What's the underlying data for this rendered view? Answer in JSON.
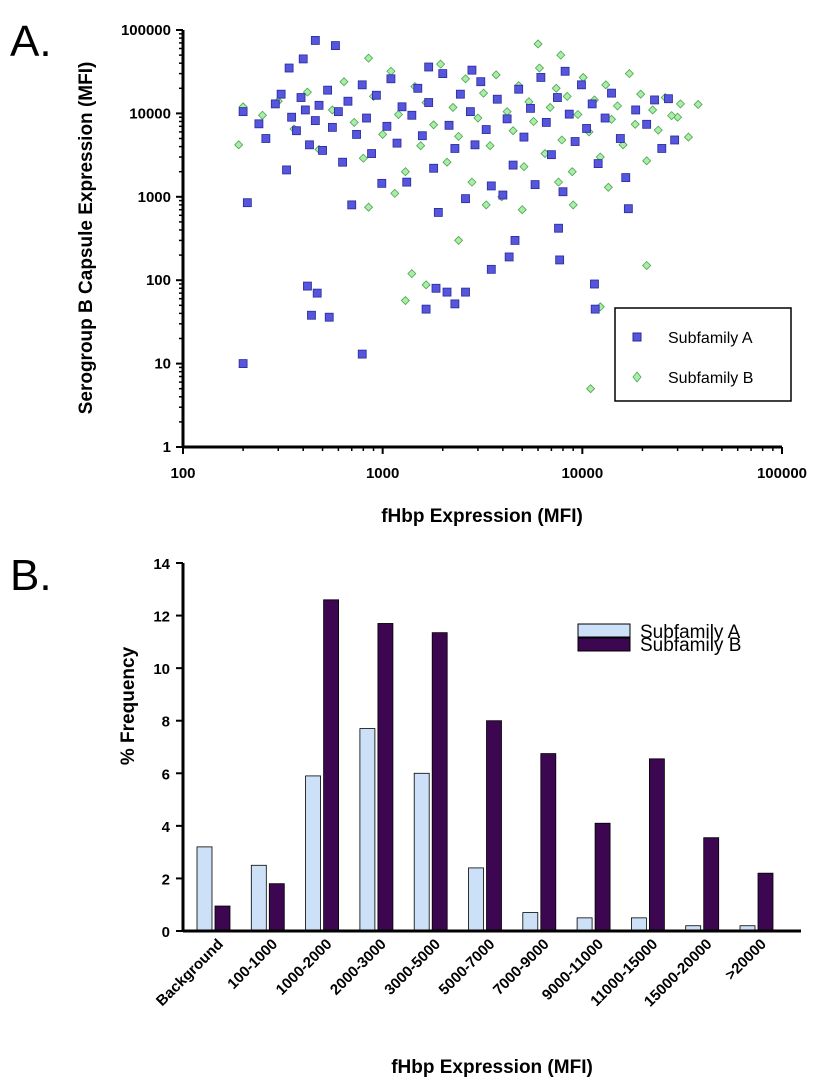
{
  "chart_data": [
    {
      "panel": "A.",
      "type": "scatter",
      "xlabel": "fHbp Expression (MFI)",
      "ylabel": "Serogroup B Capsule Expression (MFI)",
      "xscale": "log",
      "yscale": "log",
      "xlim": [
        100,
        100000
      ],
      "ylim": [
        1,
        100000
      ],
      "xticks": [
        "100",
        "1000",
        "10000",
        "100000"
      ],
      "yticks": [
        "1",
        "10",
        "100",
        "1000",
        "10000",
        "100000"
      ],
      "legend_position": "lower-right",
      "grid": false,
      "series": [
        {
          "name": "Subfamily A",
          "marker": "square",
          "color": "#5555dd",
          "points": [
            [
              200,
              10
            ],
            [
              210,
              850
            ],
            [
              420,
              85
            ],
            [
              440,
              38
            ],
            [
              470,
              70
            ],
            [
              540,
              36
            ],
            [
              790,
              13
            ],
            [
              1850,
              80
            ],
            [
              2100,
              72
            ],
            [
              2300,
              52
            ],
            [
              2600,
              72
            ],
            [
              1650,
              45
            ],
            [
              3500,
              135
            ],
            [
              4300,
              190
            ],
            [
              4600,
              300
            ],
            [
              7600,
              420
            ],
            [
              7700,
              175
            ],
            [
              11500,
              90
            ],
            [
              11600,
              45
            ],
            [
              460,
              75000
            ],
            [
              580,
              65000
            ],
            [
              400,
              45000
            ],
            [
              1700,
              36000
            ],
            [
              340,
              35000
            ],
            [
              2800,
              33000
            ],
            [
              8200,
              32000
            ],
            [
              23000,
              14500
            ],
            [
              29000,
              4800
            ],
            [
              17000,
              720
            ],
            [
              200,
              10500
            ],
            [
              240,
              7500
            ],
            [
              260,
              5000
            ],
            [
              290,
              13000
            ],
            [
              310,
              17000
            ],
            [
              330,
              2100
            ],
            [
              350,
              9000
            ],
            [
              370,
              6200
            ],
            [
              390,
              15500
            ],
            [
              410,
              11000
            ],
            [
              430,
              4200
            ],
            [
              460,
              8200
            ],
            [
              480,
              12500
            ],
            [
              500,
              3600
            ],
            [
              530,
              19000
            ],
            [
              560,
              6800
            ],
            [
              600,
              10500
            ],
            [
              630,
              2600
            ],
            [
              670,
              14000
            ],
            [
              700,
              800
            ],
            [
              740,
              5600
            ],
            [
              790,
              22000
            ],
            [
              830,
              8800
            ],
            [
              880,
              3300
            ],
            [
              930,
              16500
            ],
            [
              990,
              1450
            ],
            [
              1050,
              7000
            ],
            [
              1100,
              26000
            ],
            [
              1180,
              4400
            ],
            [
              1250,
              12000
            ],
            [
              1320,
              1500
            ],
            [
              1400,
              9500
            ],
            [
              1500,
              20000
            ],
            [
              1580,
              5400
            ],
            [
              1700,
              13500
            ],
            [
              1800,
              2200
            ],
            [
              1900,
              650
            ],
            [
              2000,
              30000
            ],
            [
              2150,
              7200
            ],
            [
              2300,
              3800
            ],
            [
              2450,
              17000
            ],
            [
              2600,
              950
            ],
            [
              2750,
              10500
            ],
            [
              2900,
              4200
            ],
            [
              3100,
              24000
            ],
            [
              3300,
              6400
            ],
            [
              3500,
              1350
            ],
            [
              3750,
              14800
            ],
            [
              4000,
              1050
            ],
            [
              4200,
              8600
            ],
            [
              4500,
              2400
            ],
            [
              4800,
              19500
            ],
            [
              5100,
              5200
            ],
            [
              5500,
              11500
            ],
            [
              5800,
              1400
            ],
            [
              6200,
              27000
            ],
            [
              6600,
              7800
            ],
            [
              7000,
              3200
            ],
            [
              7500,
              15500
            ],
            [
              8000,
              1150
            ],
            [
              8600,
              9800
            ],
            [
              9200,
              4600
            ],
            [
              9900,
              22000
            ],
            [
              10500,
              6600
            ],
            [
              11200,
              13000
            ],
            [
              12000,
              2500
            ],
            [
              13000,
              8800
            ],
            [
              14000,
              17500
            ],
            [
              15500,
              5000
            ],
            [
              16500,
              1700
            ],
            [
              18500,
              11000
            ],
            [
              21000,
              7400
            ],
            [
              25000,
              3800
            ],
            [
              27000,
              15000
            ]
          ]
        },
        {
          "name": "Subfamily B",
          "marker": "diamond",
          "color": "#a8eea8",
          "points": [
            [
              190,
              4200
            ],
            [
              200,
              12000
            ],
            [
              1150,
              1100
            ],
            [
              1400,
              120
            ],
            [
              1300,
              57
            ],
            [
              1650,
              88
            ],
            [
              2400,
              300
            ],
            [
              11000,
              5
            ],
            [
              12300,
              48
            ],
            [
              21000,
              150
            ],
            [
              850,
              750
            ],
            [
              38000,
              12800
            ],
            [
              34000,
              5200
            ],
            [
              30000,
              9000
            ],
            [
              6000,
              68000
            ],
            [
              7800,
              50000
            ],
            [
              850,
              46000
            ],
            [
              250,
              9500
            ],
            [
              300,
              14000
            ],
            [
              360,
              6500
            ],
            [
              420,
              18000
            ],
            [
              480,
              3700
            ],
            [
              560,
              11000
            ],
            [
              640,
              24000
            ],
            [
              720,
              7800
            ],
            [
              800,
              2900
            ],
            [
              900,
              16000
            ],
            [
              1000,
              5600
            ],
            [
              1100,
              32000
            ],
            [
              1200,
              9700
            ],
            [
              1300,
              2000
            ],
            [
              1450,
              21000
            ],
            [
              1550,
              4100
            ],
            [
              1650,
              13500
            ],
            [
              1800,
              7300
            ],
            [
              1950,
              39000
            ],
            [
              2100,
              2600
            ],
            [
              2250,
              11800
            ],
            [
              2400,
              5300
            ],
            [
              2600,
              26000
            ],
            [
              2800,
              1500
            ],
            [
              3000,
              8800
            ],
            [
              3200,
              17500
            ],
            [
              3450,
              4100
            ],
            [
              3700,
              29000
            ],
            [
              3950,
              1000
            ],
            [
              4200,
              10500
            ],
            [
              4500,
              6200
            ],
            [
              4800,
              21500
            ],
            [
              5100,
              2300
            ],
            [
              5400,
              13800
            ],
            [
              5700,
              8000
            ],
            [
              6100,
              35000
            ],
            [
              6500,
              3300
            ],
            [
              6900,
              11800
            ],
            [
              7400,
              20000
            ],
            [
              7900,
              4800
            ],
            [
              8400,
              16000
            ],
            [
              8900,
              2000
            ],
            [
              9500,
              9700
            ],
            [
              10100,
              27000
            ],
            [
              10800,
              6000
            ],
            [
              11500,
              14500
            ],
            [
              12300,
              3000
            ],
            [
              13100,
              22000
            ],
            [
              14000,
              8500
            ],
            [
              15000,
              12300
            ],
            [
              16000,
              4200
            ],
            [
              17200,
              30000
            ],
            [
              18400,
              7400
            ],
            [
              19600,
              17000
            ],
            [
              21000,
              2700
            ],
            [
              22500,
              11000
            ],
            [
              24000,
              6300
            ],
            [
              26000,
              15500
            ],
            [
              28000,
              9400
            ],
            [
              31000,
              13000
            ],
            [
              9000,
              800
            ],
            [
              5000,
              700
            ],
            [
              13500,
              1300
            ],
            [
              7600,
              1500
            ],
            [
              3300,
              800
            ]
          ]
        }
      ]
    },
    {
      "panel": "B.",
      "type": "bar",
      "xlabel": "fHbp Expression (MFI)",
      "ylabel": "% Frequency",
      "ylim": [
        0,
        14
      ],
      "yticks": [
        "0",
        "2",
        "4",
        "6",
        "8",
        "10",
        "12",
        "14"
      ],
      "legend_position": "top-right",
      "grid": false,
      "categories": [
        "Background",
        "100-1000",
        "1000-2000",
        "2000-3000",
        "3000-5000",
        "5000-7000",
        "7000-9000",
        "9000-11000",
        "11000-15000",
        "15000-20000",
        ">20000"
      ],
      "series": [
        {
          "name": "Subfamily A",
          "color": "#cce0f7",
          "values": [
            3.2,
            2.5,
            5.9,
            7.7,
            6.0,
            2.4,
            0.7,
            0.5,
            0.5,
            0.2,
            0.2
          ]
        },
        {
          "name": "Subfamily B",
          "color": "#3d0650",
          "values": [
            0.95,
            1.8,
            12.6,
            11.7,
            11.35,
            8.0,
            6.75,
            4.1,
            6.55,
            3.55,
            2.2
          ]
        }
      ]
    }
  ]
}
